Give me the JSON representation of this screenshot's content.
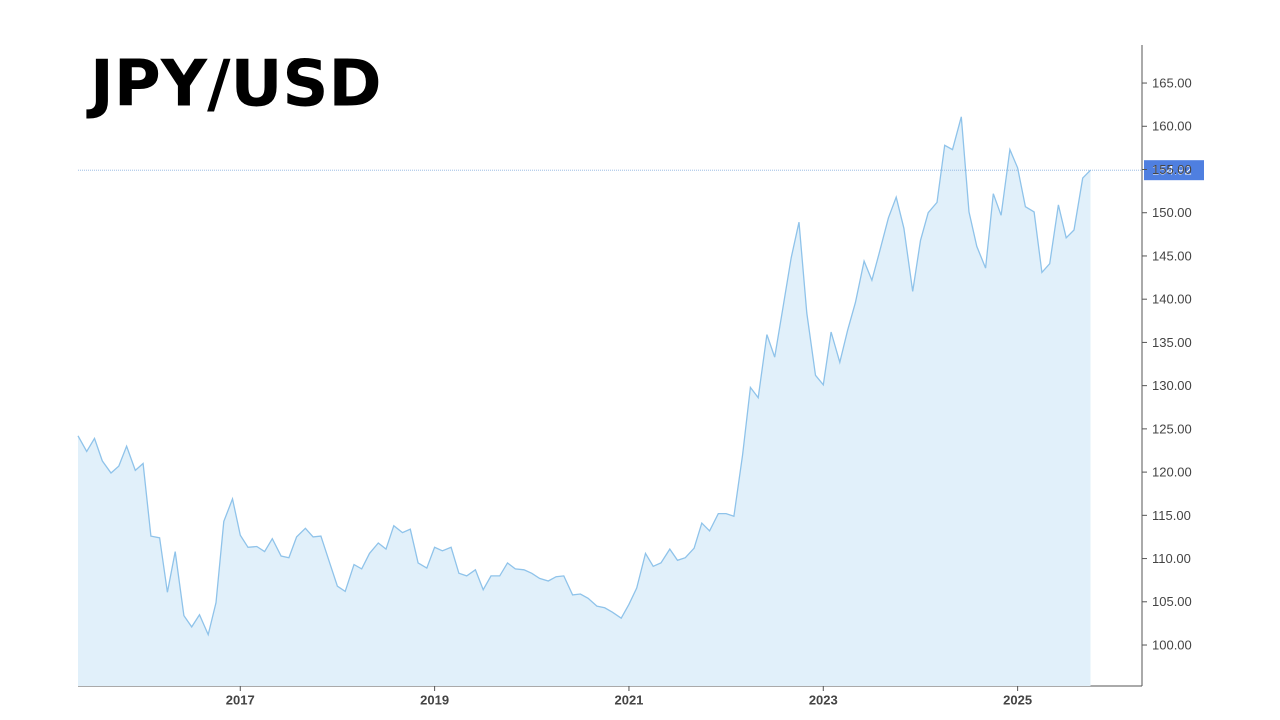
{
  "chart_data": {
    "type": "area",
    "title": "JPY/USD",
    "x": [
      2015.33,
      2015.42,
      2015.5,
      2015.58,
      2015.67,
      2015.75,
      2015.83,
      2015.92,
      2016.0,
      2016.08,
      2016.17,
      2016.25,
      2016.33,
      2016.42,
      2016.5,
      2016.58,
      2016.67,
      2016.75,
      2016.83,
      2016.92,
      2017.0,
      2017.08,
      2017.17,
      2017.25,
      2017.33,
      2017.42,
      2017.5,
      2017.58,
      2017.67,
      2017.75,
      2017.83,
      2017.92,
      2018.0,
      2018.08,
      2018.17,
      2018.25,
      2018.33,
      2018.42,
      2018.5,
      2018.58,
      2018.67,
      2018.75,
      2018.83,
      2018.92,
      2019.0,
      2019.08,
      2019.17,
      2019.25,
      2019.33,
      2019.42,
      2019.5,
      2019.58,
      2019.67,
      2019.75,
      2019.83,
      2019.92,
      2020.0,
      2020.08,
      2020.17,
      2020.25,
      2020.33,
      2020.42,
      2020.5,
      2020.58,
      2020.67,
      2020.75,
      2020.83,
      2020.92,
      2021.0,
      2021.08,
      2021.17,
      2021.25,
      2021.33,
      2021.42,
      2021.5,
      2021.58,
      2021.67,
      2021.75,
      2021.83,
      2021.92,
      2022.0,
      2022.08,
      2022.17,
      2022.25,
      2022.33,
      2022.42,
      2022.5,
      2022.58,
      2022.67,
      2022.75,
      2022.83,
      2022.92,
      2023.0,
      2023.08,
      2023.17,
      2023.25,
      2023.33,
      2023.42,
      2023.5,
      2023.58,
      2023.67,
      2023.75,
      2023.83,
      2023.92,
      2024.0,
      2024.08,
      2024.17,
      2024.25,
      2024.33,
      2024.42,
      2024.5,
      2024.58,
      2024.67,
      2024.75,
      2024.83,
      2024.92,
      2025.0,
      2025.08,
      2025.17,
      2025.25,
      2025.33,
      2025.42,
      2025.5,
      2025.58,
      2025.67,
      2025.75
    ],
    "series": [
      {
        "color": "#8fc3ea",
        "fill": "#e1f0fa",
        "values": [
          124.2,
          122.4,
          123.9,
          121.3,
          119.9,
          120.7,
          123.0,
          120.2,
          121.0,
          112.6,
          112.4,
          106.1,
          110.8,
          103.4,
          102.1,
          103.5,
          101.2,
          104.9,
          114.3,
          116.9,
          112.7,
          111.3,
          111.4,
          110.8,
          112.3,
          110.3,
          110.1,
          112.5,
          113.5,
          112.5,
          112.6,
          109.5,
          106.8,
          106.2,
          109.3,
          108.8,
          110.6,
          111.8,
          111.1,
          113.8,
          113.0,
          113.4,
          109.5,
          108.9,
          111.3,
          110.9,
          111.3,
          108.3,
          108.0,
          108.7,
          106.4,
          108.0,
          108.0,
          109.5,
          108.8,
          108.7,
          108.3,
          107.7,
          107.4,
          107.9,
          108.0,
          105.8,
          105.9,
          105.4,
          104.5,
          104.3,
          103.8,
          103.1,
          104.7,
          106.6,
          110.6,
          109.1,
          109.5,
          111.1,
          109.8,
          110.1,
          111.2,
          114.1,
          113.2,
          115.2,
          115.2,
          114.9,
          122.0,
          129.8,
          128.6,
          135.9,
          133.3,
          138.7,
          144.8,
          148.9,
          138.4,
          131.2,
          130.1,
          136.2,
          132.7,
          136.4,
          139.6,
          144.4,
          142.2,
          145.5,
          149.4,
          151.8,
          148.2,
          140.9,
          146.8,
          150.0,
          151.2,
          157.8,
          157.3,
          161.1,
          150.1,
          146.1,
          143.6,
          152.2,
          149.7,
          157.3,
          155.2,
          150.7,
          150.1,
          143.1,
          144.1,
          150.9,
          147.1,
          148.0,
          154.0,
          154.92
        ]
      }
    ],
    "last_value_color": "#4f7fe0",
    "xlim": [
      2015.33,
      2026.28
    ],
    "xticks": [
      2017,
      2019,
      2021,
      2023,
      2025
    ],
    "ylim": [
      95.26,
      169.4
    ],
    "yticks": [
      {
        "value": 100,
        "label": "100.00"
      },
      {
        "value": 105,
        "label": "105.00"
      },
      {
        "value": 110,
        "label": "110.00"
      },
      {
        "value": 115,
        "label": "115.00"
      },
      {
        "value": 120,
        "label": "120.00"
      },
      {
        "value": 125,
        "label": "125.00"
      },
      {
        "value": 130,
        "label": "130.00"
      },
      {
        "value": 135,
        "label": "135.00"
      },
      {
        "value": 140,
        "label": "140.00"
      },
      {
        "value": 145,
        "label": "145.00"
      },
      {
        "value": 150,
        "label": "150.00"
      },
      {
        "value": 155,
        "label": "155.00"
      },
      {
        "value": 160,
        "label": "160.00"
      },
      {
        "value": 165,
        "label": "165.00"
      }
    ],
    "y_axis_side": "right"
  }
}
